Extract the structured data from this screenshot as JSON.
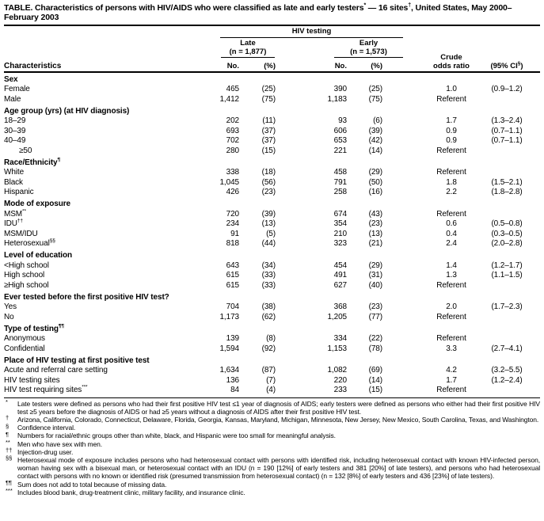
{
  "title": {
    "part1": "TABLE. Characteristics of persons with HIV/AIDS who were classified as late and early testers",
    "sup1": "*",
    "part2": " — 16 sites",
    "sup2": "†",
    "part3": ", United States, May 2000–February 2003"
  },
  "header": {
    "characteristics": "Characteristics",
    "hiv_testing": "HIV testing",
    "late": {
      "label": "Late",
      "n": "(n = 1,877)"
    },
    "early": {
      "label": "Early",
      "n": "(n = 1,573)"
    },
    "no": "No.",
    "pct": "(%)",
    "crude_line1": "Crude",
    "crude_line2": "odds ratio",
    "ci_prefix": "(95% CI",
    "ci_sup": "§",
    "ci_suffix": ")"
  },
  "sections": [
    {
      "label": "Sex",
      "sup": "",
      "rows": [
        {
          "label": "Female",
          "sup": "",
          "indent": 1,
          "late_no": "465",
          "late_pct": "(25)",
          "early_no": "390",
          "early_pct": "(25)",
          "or": "1.0",
          "ci": "(0.9–1.2)"
        },
        {
          "label": "Male",
          "sup": "",
          "indent": 1,
          "late_no": "1,412",
          "late_pct": "(75)",
          "early_no": "1,183",
          "early_pct": "(75)",
          "or": "Referent",
          "ci": ""
        }
      ]
    },
    {
      "label": "Age group (yrs) (at HIV diagnosis)",
      "sup": "",
      "rows": [
        {
          "label": "18–29",
          "sup": "",
          "indent": 1,
          "late_no": "202",
          "late_pct": "(11)",
          "early_no": "93",
          "early_pct": "(6)",
          "or": "1.7",
          "ci": "(1.3–2.4)"
        },
        {
          "label": "30–39",
          "sup": "",
          "indent": 1,
          "late_no": "693",
          "late_pct": "(37)",
          "early_no": "606",
          "early_pct": "(39)",
          "or": "0.9",
          "ci": "(0.7–1.1)"
        },
        {
          "label": "40–49",
          "sup": "",
          "indent": 1,
          "late_no": "702",
          "late_pct": "(37)",
          "early_no": "653",
          "early_pct": "(42)",
          "or": "0.9",
          "ci": "(0.7–1.1)"
        },
        {
          "label": "≥50",
          "sup": "",
          "indent": 2,
          "late_no": "280",
          "late_pct": "(15)",
          "early_no": "221",
          "early_pct": "(14)",
          "or": "Referent",
          "ci": ""
        }
      ]
    },
    {
      "label": "Race/Ethnicity",
      "sup": "¶",
      "rows": [
        {
          "label": "White",
          "sup": "",
          "indent": 1,
          "late_no": "338",
          "late_pct": "(18)",
          "early_no": "458",
          "early_pct": "(29)",
          "or": "Referent",
          "ci": ""
        },
        {
          "label": "Black",
          "sup": "",
          "indent": 1,
          "late_no": "1,045",
          "late_pct": "(56)",
          "early_no": "791",
          "early_pct": "(50)",
          "or": "1.8",
          "ci": "(1.5–2.1)"
        },
        {
          "label": "Hispanic",
          "sup": "",
          "indent": 1,
          "late_no": "426",
          "late_pct": "(23)",
          "early_no": "258",
          "early_pct": "(16)",
          "or": "2.2",
          "ci": "(1.8–2.8)"
        }
      ]
    },
    {
      "label": "Mode of exposure",
      "sup": "",
      "rows": [
        {
          "label": "MSM",
          "sup": "**",
          "indent": 1,
          "late_no": "720",
          "late_pct": "(39)",
          "early_no": "674",
          "early_pct": "(43)",
          "or": "Referent",
          "ci": ""
        },
        {
          "label": "IDU",
          "sup": "††",
          "indent": 1,
          "late_no": "234",
          "late_pct": "(13)",
          "early_no": "354",
          "early_pct": "(23)",
          "or": "0.6",
          "ci": "(0.5–0.8)"
        },
        {
          "label": "MSM/IDU",
          "sup": "",
          "indent": 1,
          "late_no": "91",
          "late_pct": "(5)",
          "early_no": "210",
          "early_pct": "(13)",
          "or": "0.4",
          "ci": "(0.3–0.5)"
        },
        {
          "label": "Heterosexual",
          "sup": "§§",
          "indent": 1,
          "late_no": "818",
          "late_pct": "(44)",
          "early_no": "323",
          "early_pct": "(21)",
          "or": "2.4",
          "ci": "(2.0–2.8)"
        }
      ]
    },
    {
      "label": "Level of education",
      "sup": "",
      "rows": [
        {
          "label": "<High school",
          "sup": "",
          "indent": 1,
          "late_no": "643",
          "late_pct": "(34)",
          "early_no": "454",
          "early_pct": "(29)",
          "or": "1.4",
          "ci": "(1.2–1.7)"
        },
        {
          "label": "High school",
          "sup": "",
          "indent": 1,
          "late_no": "615",
          "late_pct": "(33)",
          "early_no": "491",
          "early_pct": "(31)",
          "or": "1.3",
          "ci": "(1.1–1.5)"
        },
        {
          "label": "≥High school",
          "sup": "",
          "indent": 1,
          "late_no": "615",
          "late_pct": "(33)",
          "early_no": "627",
          "early_pct": "(40)",
          "or": "Referent",
          "ci": ""
        }
      ]
    },
    {
      "label": "Ever tested before the first positive HIV test?",
      "sup": "",
      "rows": [
        {
          "label": "Yes",
          "sup": "",
          "indent": 1,
          "late_no": "704",
          "late_pct": "(38)",
          "early_no": "368",
          "early_pct": "(23)",
          "or": "2.0",
          "ci": "(1.7–2.3)"
        },
        {
          "label": "No",
          "sup": "",
          "indent": 1,
          "late_no": "1,173",
          "late_pct": "(62)",
          "early_no": "1,205",
          "early_pct": "(77)",
          "or": "Referent",
          "ci": ""
        }
      ]
    },
    {
      "label": "Type of testing",
      "sup": "¶¶",
      "rows": [
        {
          "label": "Anonymous",
          "sup": "",
          "indent": 1,
          "late_no": "139",
          "late_pct": "(8)",
          "early_no": "334",
          "early_pct": "(22)",
          "or": "Referent",
          "ci": ""
        },
        {
          "label": "Confidential",
          "sup": "",
          "indent": 1,
          "late_no": "1,594",
          "late_pct": "(92)",
          "early_no": "1,153",
          "early_pct": "(78)",
          "or": "3.3",
          "ci": "(2.7–4.1)"
        }
      ]
    },
    {
      "label": "Place of HIV testing at first positive test",
      "sup": "",
      "rows": [
        {
          "label": "Acute and referral care setting",
          "sup": "",
          "indent": 1,
          "late_no": "1,634",
          "late_pct": "(87)",
          "early_no": "1,082",
          "early_pct": "(69)",
          "or": "4.2",
          "ci": "(3.2–5.5)"
        },
        {
          "label": "HIV testing sites",
          "sup": "",
          "indent": 1,
          "late_no": "136",
          "late_pct": "(7)",
          "early_no": "220",
          "early_pct": "(14)",
          "or": "1.7",
          "ci": "(1.2–2.4)"
        },
        {
          "label": "HIV test requiring sites",
          "sup": "***",
          "indent": 1,
          "late_no": "84",
          "late_pct": "(4)",
          "early_no": "233",
          "early_pct": "(15)",
          "or": "Referent",
          "ci": ""
        }
      ]
    }
  ],
  "footnotes": [
    {
      "marker": "*",
      "text": "Late testers were defined as persons who had their first positive HIV test ≤1 year of diagnosis of AIDS; early testers were defined as persons who either had their first positive HIV test ≥5 years before the diagnosis of AIDS or had ≥5 years without a diagnosis of AIDS after their first positive HIV test."
    },
    {
      "marker": "†",
      "text": "Arizona, California, Colorado, Connecticut, Delaware, Florida, Georgia, Kansas, Maryland, Michigan, Minnesota, New Jersey, New Mexico, South Carolina, Texas, and Washington."
    },
    {
      "marker": "§",
      "text": "Confidence interval."
    },
    {
      "marker": "¶",
      "text": "Numbers for racial/ethnic groups other than white, black, and Hispanic were too small for meaningful analysis."
    },
    {
      "marker": "**",
      "text": "Men who have sex with men."
    },
    {
      "marker": "††",
      "text": "Injection-drug user."
    },
    {
      "marker": "§§",
      "text": "Heterosexual mode of exposure includes persons who had heterosexual contact with persons with identified risk, including heterosexual contact with known HIV-infected person, woman having sex with a bisexual man, or heterosexual contact with an IDU (n = 190 [12%] of early testers and 381 [20%] of late testers), and persons who had heterosexual contact with persons with no known or identified risk (presumed transmission from heterosexual contact) (n = 132 [8%] of early testers and 436 [23%] of late testers)."
    },
    {
      "marker": "¶¶",
      "text": "Sum does not add to total because of missing data."
    },
    {
      "marker": "***",
      "text": "Includes blood bank, drug-treatment clinic, military facility, and insurance clinic."
    }
  ]
}
